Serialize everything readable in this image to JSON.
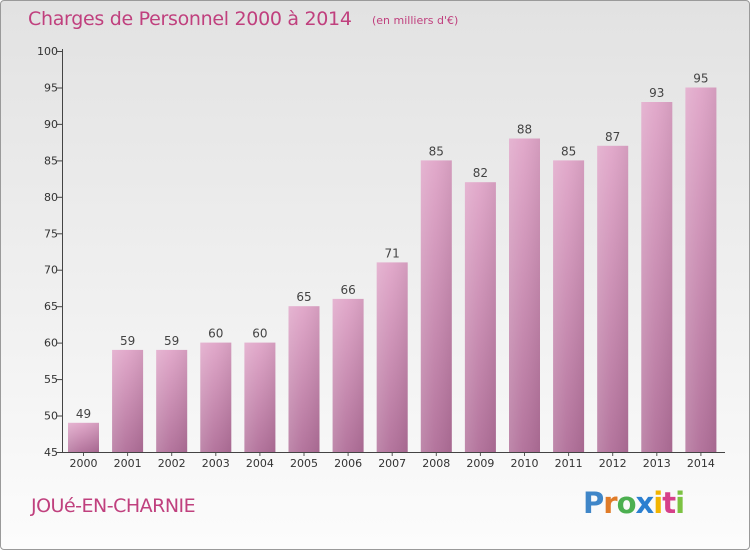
{
  "header": {
    "title": "Charges de Personnel 2000 à 2014",
    "subtitle": "(en milliers d'€)"
  },
  "footer": {
    "commune": "JOUé-EN-CHARNIE",
    "logo_letters": [
      "P",
      "r",
      "o",
      "x",
      "i",
      "t",
      "i"
    ]
  },
  "colors": {
    "bar_top": "#e0a5c8",
    "bar_bottom": "#b06e98",
    "title": "#c0407e",
    "logo": [
      "#3f86c8",
      "#e07b28",
      "#4caf50",
      "#2b7fd0",
      "#f2b400",
      "#d6408a",
      "#7cc242"
    ]
  },
  "chart_data": {
    "type": "bar",
    "title": "Charges de Personnel 2000 à 2014",
    "subtitle": "(en milliers d'€)",
    "categories": [
      "2000",
      "2001",
      "2002",
      "2003",
      "2004",
      "2005",
      "2006",
      "2007",
      "2008",
      "2009",
      "2010",
      "2011",
      "2012",
      "2013",
      "2014"
    ],
    "values": [
      49,
      59,
      59,
      60,
      60,
      65,
      66,
      71,
      85,
      82,
      88,
      85,
      87,
      93,
      95
    ],
    "yticks": [
      "45",
      "50",
      "55",
      "60",
      "65",
      "70",
      "75",
      "80",
      "85",
      "90",
      "95",
      "100"
    ],
    "ylim": [
      45,
      100
    ],
    "grid": false,
    "legend": "none"
  }
}
